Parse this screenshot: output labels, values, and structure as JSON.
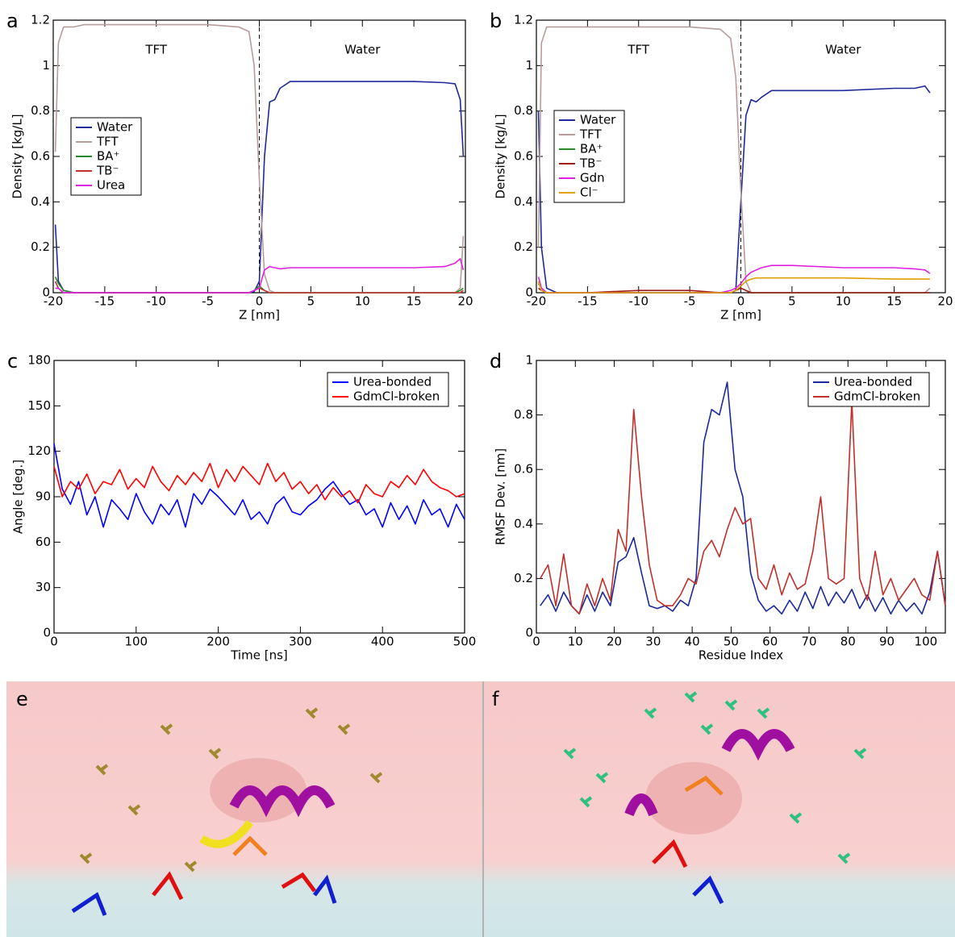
{
  "chart_data": [
    {
      "type": "line",
      "panel_label": "a",
      "xlabel": "Z [nm]",
      "ylabel": "Density [kg/L]",
      "xlim": [
        -20,
        20
      ],
      "xticks": [
        -20,
        -15,
        -10,
        -5,
        0,
        5,
        10,
        15,
        20
      ],
      "ylim": [
        0,
        1.2
      ],
      "yticks": [
        0,
        0.2,
        0.4,
        0.6,
        0.8,
        1,
        1.2
      ],
      "annotations": [
        "TFT",
        "Water"
      ],
      "divider_x": 0,
      "legend": "center left",
      "x": [
        -19.8,
        -19.5,
        -19,
        -18,
        -17,
        -15,
        -10,
        -5,
        -2,
        -1,
        -0.5,
        0,
        0.5,
        1,
        1.5,
        2,
        3,
        5,
        10,
        15,
        18,
        19,
        19.5,
        19.8
      ],
      "series": [
        {
          "name": "Water",
          "color": "#1f2a9a",
          "values": [
            0.3,
            0.05,
            0.01,
            0,
            0,
            0,
            0,
            0,
            0,
            0,
            0.005,
            0.05,
            0.6,
            0.84,
            0.85,
            0.9,
            0.93,
            0.93,
            0.93,
            0.93,
            0.925,
            0.92,
            0.85,
            0.6
          ]
        },
        {
          "name": "TFT",
          "color": "#b89c9c",
          "values": [
            0.62,
            1.1,
            1.17,
            1.17,
            1.18,
            1.18,
            1.18,
            1.18,
            1.17,
            1.15,
            1.0,
            0.5,
            0.08,
            0.01,
            0,
            0,
            0,
            0,
            0,
            0,
            0,
            0,
            0.02,
            0.25
          ]
        },
        {
          "name": "BA⁺",
          "color": "#2a8a2a",
          "values": [
            0.07,
            0.04,
            0.01,
            0,
            0,
            0,
            0,
            0,
            0,
            0,
            0.01,
            0.03,
            0.01,
            0,
            0,
            0,
            0,
            0,
            0,
            0,
            0,
            0,
            0.01,
            0.02
          ]
        },
        {
          "name": "TB⁻",
          "color": "#c03030",
          "values": [
            0.05,
            0.02,
            0,
            0,
            0,
            0,
            0,
            0,
            0,
            0,
            0.01,
            0.02,
            0.01,
            0,
            0,
            0,
            0,
            0,
            0,
            0,
            0,
            0,
            0,
            0.01
          ]
        },
        {
          "name": "Urea",
          "color": "#e020e0",
          "values": [
            0.02,
            0.02,
            0,
            0,
            0,
            0,
            0,
            0,
            0,
            0,
            0.01,
            0.02,
            0.1,
            0.115,
            0.11,
            0.105,
            0.11,
            0.11,
            0.11,
            0.11,
            0.115,
            0.13,
            0.15,
            0.1
          ]
        }
      ]
    },
    {
      "type": "line",
      "panel_label": "b",
      "xlabel": "Z [nm]",
      "ylabel": "Density [kg/L]",
      "xlim": [
        -20,
        20
      ],
      "xticks": [
        -20,
        -15,
        -10,
        -5,
        0,
        5,
        10,
        15,
        20
      ],
      "ylim": [
        0,
        1.2
      ],
      "yticks": [
        0,
        0.2,
        0.4,
        0.6,
        0.8,
        1,
        1.2
      ],
      "annotations": [
        "TFT",
        "Water"
      ],
      "divider_x": 0,
      "legend": "center left",
      "x": [
        -19.8,
        -19.5,
        -19,
        -18,
        -17,
        -15,
        -10,
        -5,
        -2,
        -1,
        -0.5,
        0,
        0.5,
        1,
        1.5,
        2,
        3,
        5,
        10,
        15,
        17,
        18,
        18.5
      ],
      "series": [
        {
          "name": "Water",
          "color": "#1f2a9a",
          "values": [
            0.8,
            0.2,
            0.02,
            0,
            0,
            0,
            0,
            0,
            0,
            0,
            0.01,
            0.4,
            0.78,
            0.85,
            0.84,
            0.86,
            0.89,
            0.89,
            0.89,
            0.9,
            0.9,
            0.91,
            0.88
          ]
        },
        {
          "name": "TFT",
          "color": "#b89c9c",
          "values": [
            0.2,
            1.1,
            1.17,
            1.17,
            1.17,
            1.17,
            1.17,
            1.17,
            1.16,
            1.12,
            0.95,
            0.45,
            0.05,
            0,
            0,
            0,
            0,
            0,
            0,
            0,
            0,
            0,
            0.02
          ]
        },
        {
          "name": "BA⁺",
          "color": "#2a8a2a",
          "values": [
            0.04,
            0.02,
            0,
            0,
            0,
            0,
            0,
            0,
            0,
            0,
            0.01,
            0.02,
            0.01,
            0,
            0,
            0,
            0,
            0,
            0,
            0,
            0,
            0,
            0
          ]
        },
        {
          "name": "TB⁻",
          "color": "#a01a1a",
          "values": [
            0.02,
            0.01,
            0,
            0,
            0,
            0,
            0.01,
            0.01,
            0,
            0,
            0.01,
            0.02,
            0.01,
            0,
            0,
            0,
            0,
            0,
            0,
            0,
            0,
            0,
            0
          ]
        },
        {
          "name": "Gdn",
          "color": "#e020e0",
          "values": [
            0.07,
            0.02,
            0,
            0,
            0,
            0,
            0,
            0,
            0,
            0.01,
            0.02,
            0.04,
            0.07,
            0.09,
            0.1,
            0.11,
            0.12,
            0.12,
            0.11,
            0.11,
            0.105,
            0.1,
            0.085
          ]
        },
        {
          "name": "Cl⁻",
          "color": "#e0a000",
          "values": [
            0.05,
            0.01,
            0,
            0,
            0,
            0,
            0,
            0,
            0,
            0,
            0.01,
            0.03,
            0.05,
            0.06,
            0.065,
            0.065,
            0.065,
            0.065,
            0.065,
            0.06,
            0.06,
            0.06,
            0.06
          ]
        }
      ]
    },
    {
      "type": "line",
      "panel_label": "c",
      "xlabel": "Time [ns]",
      "ylabel": "Angle [deg.]",
      "xlim": [
        0,
        500
      ],
      "xticks": [
        0,
        100,
        200,
        300,
        400,
        500
      ],
      "ylim": [
        0,
        180
      ],
      "yticks": [
        0,
        30,
        60,
        90,
        120,
        150,
        180
      ],
      "legend": "upper right",
      "x": [
        0,
        10,
        20,
        30,
        40,
        50,
        60,
        70,
        80,
        90,
        100,
        110,
        120,
        130,
        140,
        150,
        160,
        170,
        180,
        190,
        200,
        210,
        220,
        230,
        240,
        250,
        260,
        270,
        280,
        290,
        300,
        310,
        320,
        330,
        340,
        350,
        360,
        370,
        380,
        390,
        400,
        410,
        420,
        430,
        440,
        450,
        460,
        470,
        480,
        490,
        500
      ],
      "series": [
        {
          "name": "Urea-bonded",
          "color": "#0000ff",
          "values": [
            125,
            95,
            85,
            100,
            78,
            90,
            70,
            88,
            82,
            75,
            92,
            80,
            72,
            85,
            78,
            88,
            70,
            92,
            85,
            95,
            90,
            84,
            78,
            88,
            75,
            80,
            72,
            85,
            90,
            80,
            78,
            84,
            88,
            95,
            100,
            92,
            85,
            88,
            78,
            82,
            70,
            86,
            75,
            84,
            72,
            88,
            78,
            82,
            70,
            85,
            75
          ]
        },
        {
          "name": "GdmCl-broken",
          "color": "#ff0000",
          "values": [
            110,
            90,
            100,
            95,
            105,
            92,
            100,
            98,
            108,
            95,
            102,
            96,
            110,
            100,
            94,
            104,
            98,
            106,
            100,
            112,
            96,
            108,
            100,
            110,
            104,
            98,
            112,
            100,
            106,
            95,
            100,
            92,
            98,
            88,
            96,
            90,
            94,
            86,
            98,
            92,
            90,
            100,
            96,
            104,
            98,
            108,
            100,
            96,
            94,
            90,
            92
          ]
        }
      ]
    },
    {
      "type": "line",
      "panel_label": "d",
      "xlabel": "Residue Index",
      "ylabel": "RMSF Dev. [nm]",
      "xlim": [
        0,
        105
      ],
      "xticks": [
        0,
        10,
        20,
        30,
        40,
        50,
        60,
        70,
        80,
        90,
        100
      ],
      "ylim": [
        0,
        1
      ],
      "yticks": [
        0,
        0.2,
        0.4,
        0.6,
        0.8,
        1
      ],
      "legend": "upper right",
      "x": [
        1,
        3,
        5,
        7,
        9,
        11,
        13,
        15,
        17,
        19,
        21,
        23,
        25,
        27,
        29,
        31,
        33,
        35,
        37,
        39,
        41,
        43,
        45,
        47,
        49,
        51,
        53,
        55,
        57,
        59,
        61,
        63,
        65,
        67,
        69,
        71,
        73,
        75,
        77,
        79,
        81,
        83,
        85,
        87,
        89,
        91,
        93,
        95,
        97,
        99,
        101,
        103,
        105
      ],
      "series": [
        {
          "name": "Urea-bonded",
          "color": "#1a2a9a",
          "values": [
            0.1,
            0.14,
            0.08,
            0.15,
            0.1,
            0.07,
            0.14,
            0.08,
            0.15,
            0.1,
            0.26,
            0.28,
            0.35,
            0.22,
            0.1,
            0.09,
            0.1,
            0.08,
            0.12,
            0.1,
            0.2,
            0.7,
            0.82,
            0.8,
            0.92,
            0.6,
            0.5,
            0.22,
            0.12,
            0.08,
            0.1,
            0.07,
            0.12,
            0.08,
            0.15,
            0.09,
            0.17,
            0.1,
            0.15,
            0.11,
            0.16,
            0.09,
            0.14,
            0.08,
            0.13,
            0.07,
            0.12,
            0.08,
            0.11,
            0.07,
            0.15,
            0.3,
            0.1
          ]
        },
        {
          "name": "GdmCl-broken",
          "color": "#c0302a",
          "values": [
            0.2,
            0.25,
            0.1,
            0.29,
            0.1,
            0.07,
            0.18,
            0.1,
            0.2,
            0.12,
            0.38,
            0.3,
            0.82,
            0.5,
            0.25,
            0.12,
            0.1,
            0.1,
            0.14,
            0.2,
            0.18,
            0.3,
            0.34,
            0.28,
            0.38,
            0.46,
            0.4,
            0.42,
            0.2,
            0.16,
            0.25,
            0.14,
            0.22,
            0.16,
            0.18,
            0.3,
            0.5,
            0.2,
            0.18,
            0.2,
            0.85,
            0.2,
            0.12,
            0.3,
            0.14,
            0.2,
            0.12,
            0.16,
            0.2,
            0.14,
            0.12,
            0.3,
            0.1
          ]
        }
      ]
    }
  ],
  "images": [
    {
      "label": "e"
    },
    {
      "label": "f"
    }
  ]
}
